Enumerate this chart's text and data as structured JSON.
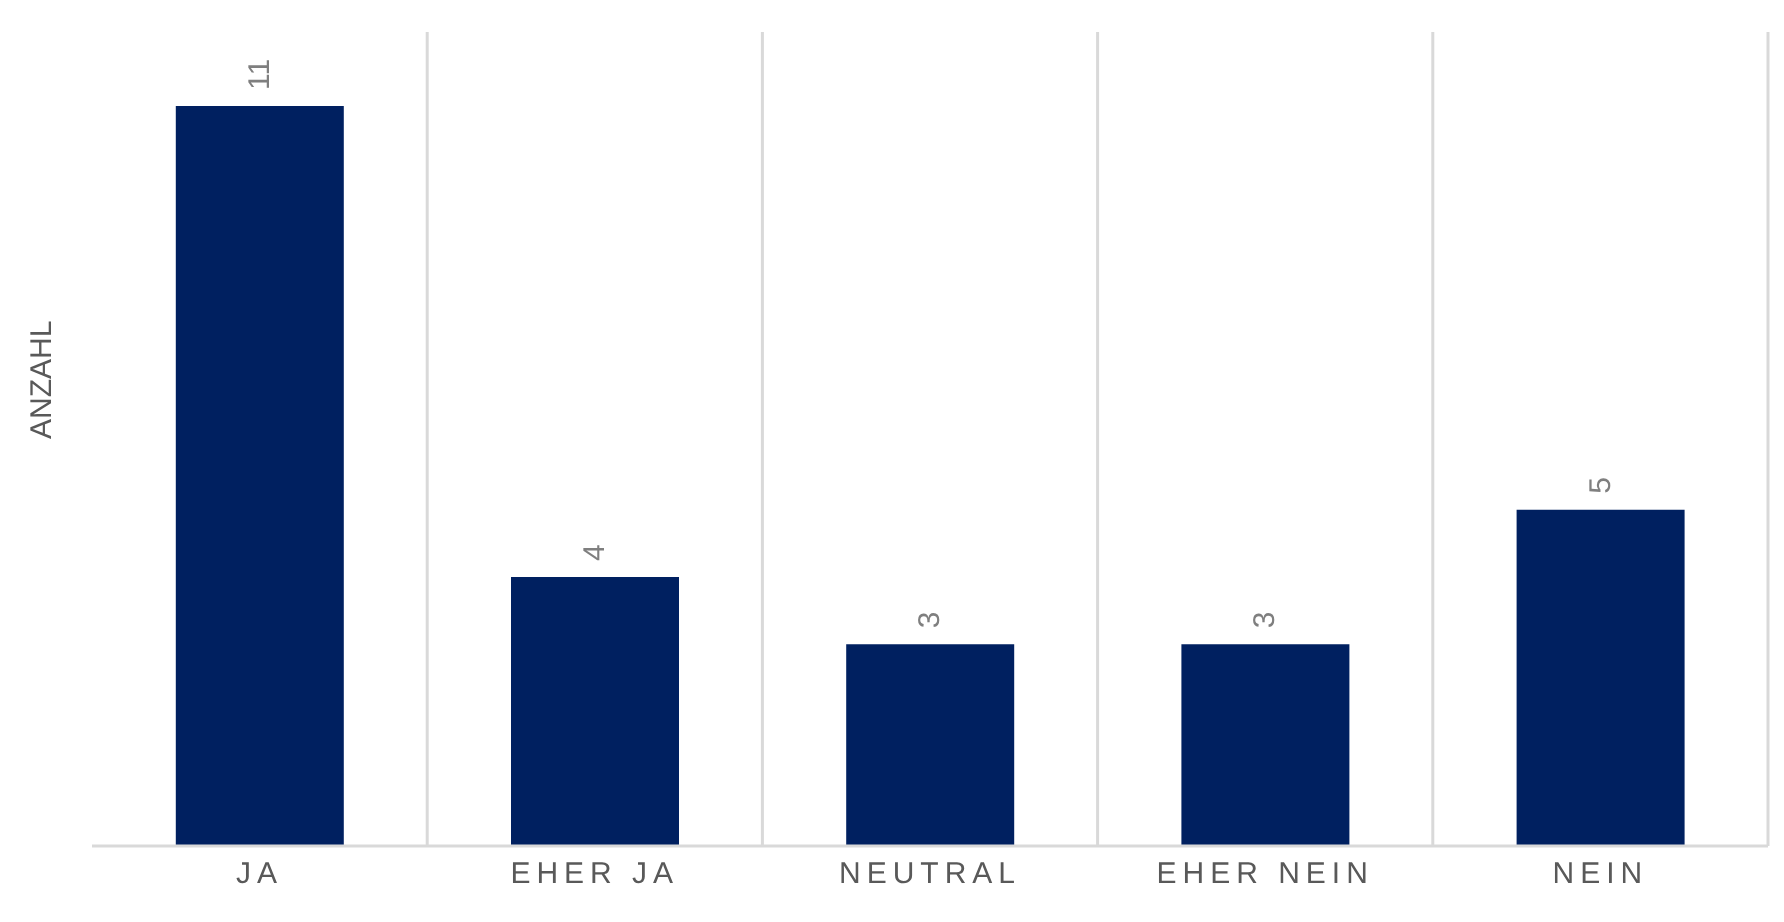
{
  "chart_data": {
    "type": "bar",
    "ylabel": "ANZAHL",
    "categories": [
      "JA",
      "EHER JA",
      "NEUTRAL",
      "EHER NEIN",
      "NEIN"
    ],
    "values": [
      11,
      4,
      3,
      3,
      5
    ],
    "color": "#002060",
    "data_labels": true,
    "grid": "x"
  }
}
